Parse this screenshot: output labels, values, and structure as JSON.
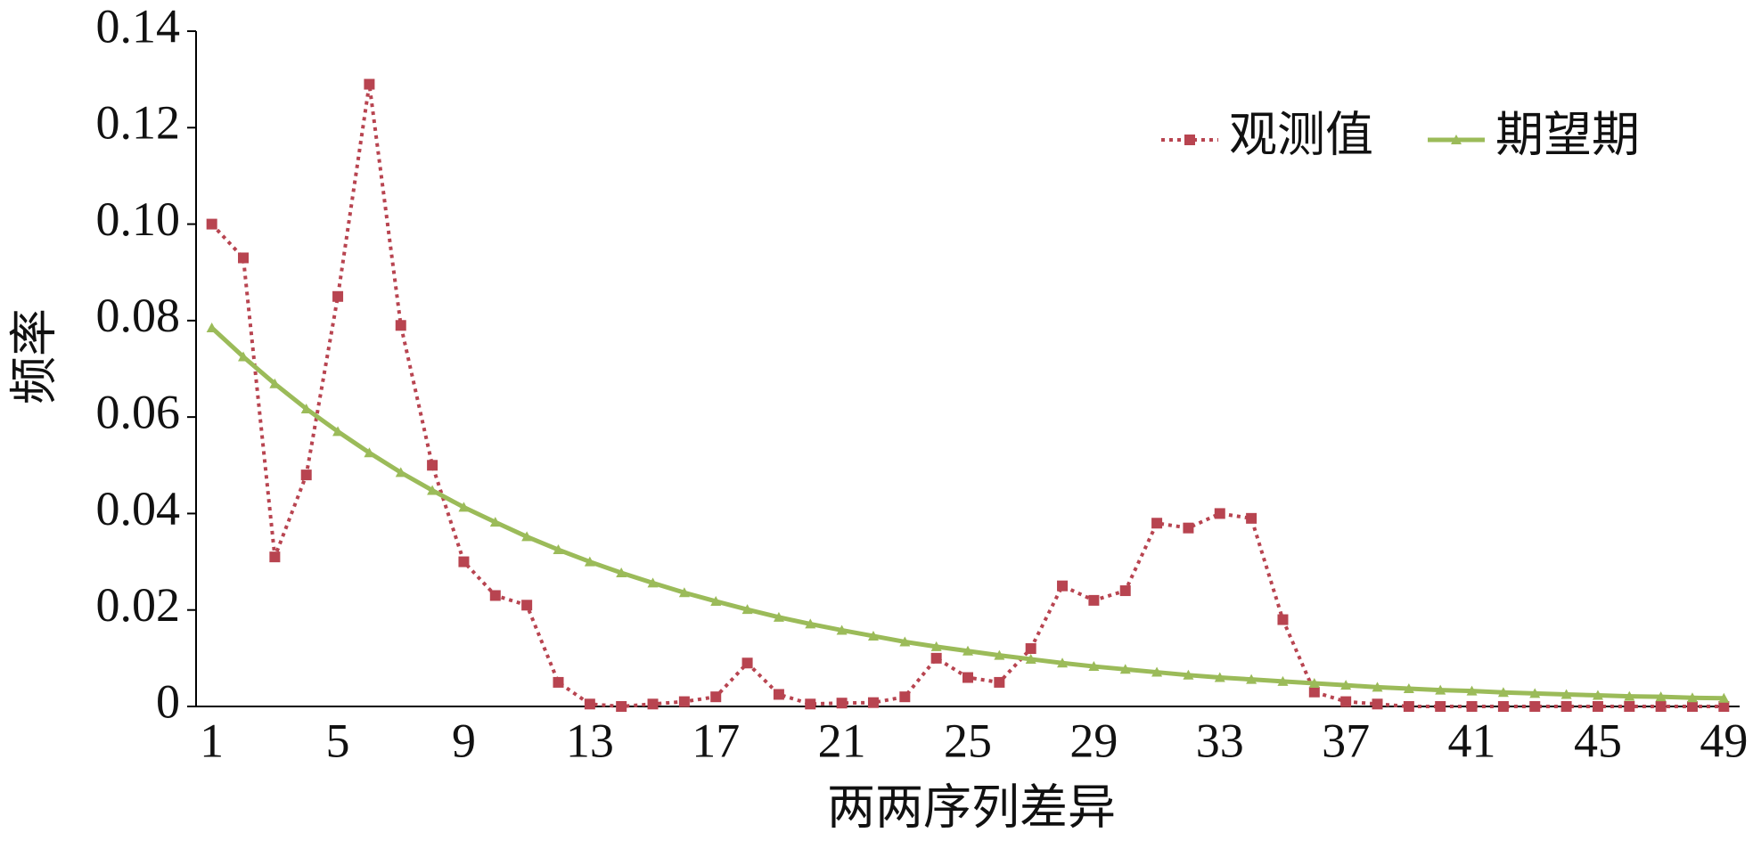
{
  "chart_data": {
    "type": "line",
    "x_label": "两两序列差异",
    "y_label": "频率",
    "categories": [
      "1",
      null,
      null,
      null,
      "5",
      null,
      null,
      null,
      "9",
      null,
      null,
      null,
      "13",
      null,
      null,
      null,
      "17",
      null,
      null,
      null,
      "21",
      null,
      null,
      null,
      "25",
      null,
      null,
      null,
      "29",
      null,
      null,
      null,
      "33",
      null,
      null,
      null,
      "37",
      null,
      null,
      null,
      "41",
      null,
      null,
      null,
      "45",
      null,
      null,
      null,
      "49"
    ],
    "series": [
      {
        "name": "观测值",
        "color": "#b84450",
        "values": [
          0.1,
          0.093,
          0.031,
          0.048,
          0.085,
          0.129,
          0.079,
          0.05,
          0.03,
          0.023,
          0.021,
          0.005,
          0.0005,
          0,
          0.0005,
          0.001,
          0.002,
          0.009,
          0.0025,
          0.0005,
          0.0007,
          0.0008,
          0.002,
          0.01,
          0.006,
          0.005,
          0.012,
          0.025,
          0.022,
          0.024,
          0.038,
          0.037,
          0.04,
          0.039,
          0.018,
          0.003,
          0.001,
          0.0005,
          0,
          0,
          0,
          0,
          0,
          0,
          0,
          0,
          0,
          0,
          0
        ]
      },
      {
        "name": "期望期",
        "color": "#9bbb59",
        "values": [
          0.0785,
          0.0725,
          0.0669,
          0.0617,
          0.057,
          0.0526,
          0.0485,
          0.0448,
          0.0413,
          0.0382,
          0.0352,
          0.0325,
          0.03,
          0.0277,
          0.0256,
          0.0236,
          0.0218,
          0.0201,
          0.0185,
          0.0171,
          0.0158,
          0.0146,
          0.0134,
          0.0124,
          0.0115,
          0.0106,
          0.0098,
          0.009,
          0.0083,
          0.0077,
          0.0071,
          0.0065,
          0.006,
          0.0056,
          0.0052,
          0.0048,
          0.0044,
          0.004,
          0.0037,
          0.0034,
          0.0032,
          0.0029,
          0.0027,
          0.0025,
          0.0023,
          0.0021,
          0.002,
          0.0018,
          0.0017
        ]
      }
    ],
    "ylim": [
      0,
      0.14
    ],
    "yticks": [
      0,
      0.02,
      0.04,
      0.06,
      0.08,
      {
        "value": 0.1,
        "label": "0.10"
      },
      0.12,
      0.14
    ],
    "grid": false,
    "legend": "upper right"
  }
}
